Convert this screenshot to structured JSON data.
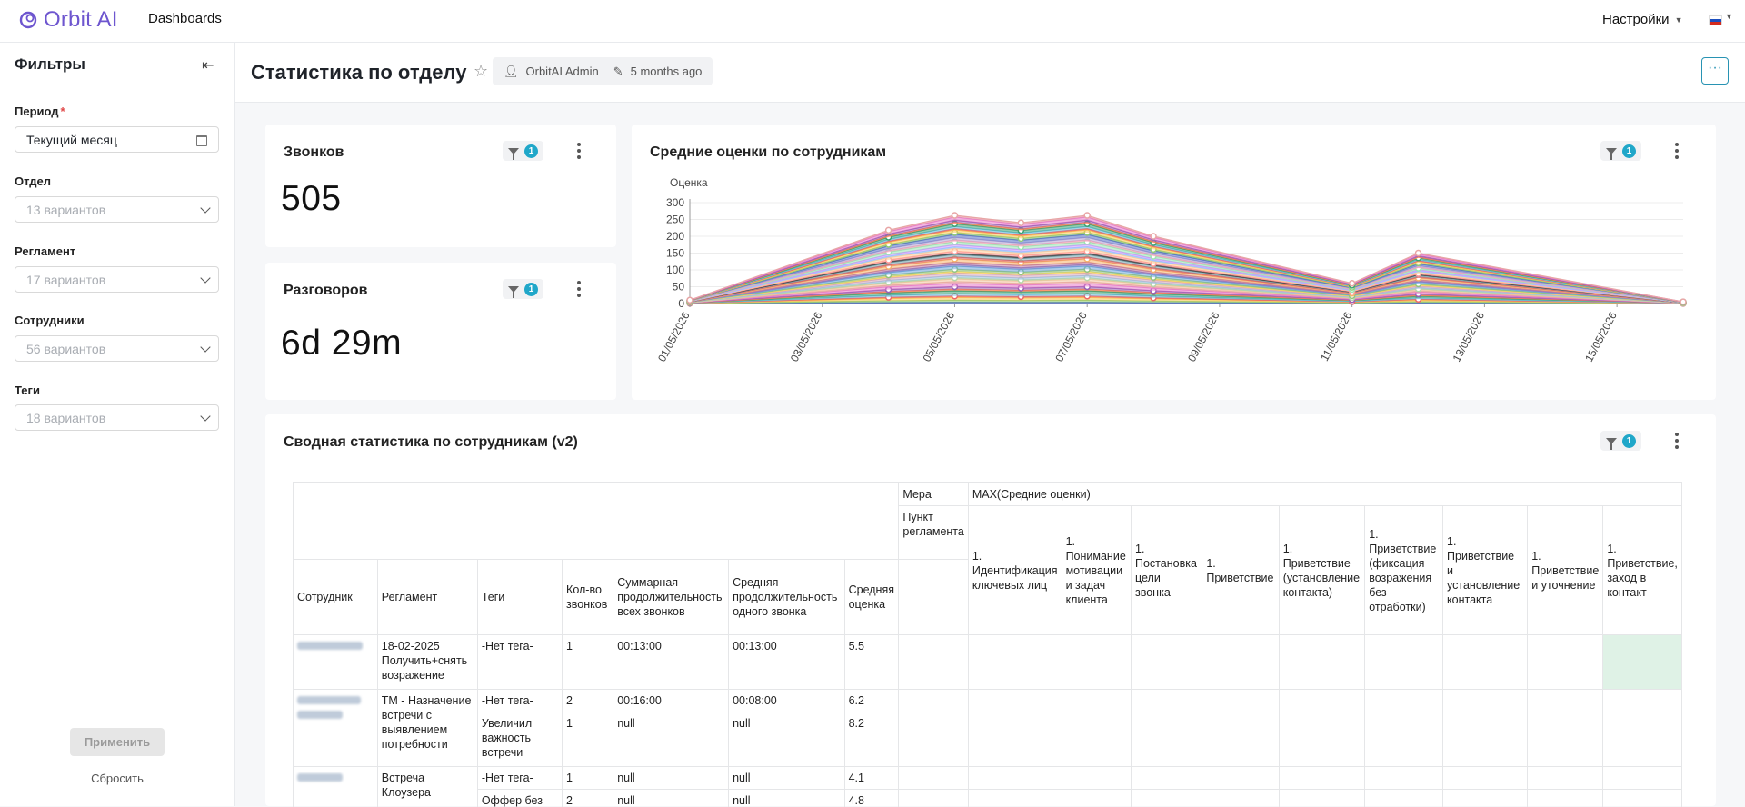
{
  "app": {
    "name": "Orbit AI",
    "nav_link": "Dashboards",
    "settings_label": "Настройки"
  },
  "sidebar": {
    "title": "Фильтры",
    "filters": [
      {
        "label": "Период",
        "required": true,
        "value": "Текущий месяц"
      },
      {
        "label": "Отдел",
        "placeholder": "13 вариантов"
      },
      {
        "label": "Регламент",
        "placeholder": "17 вариантов"
      },
      {
        "label": "Сотрудники",
        "placeholder": "56 вариантов"
      },
      {
        "label": "Теги",
        "placeholder": "18 вариантов"
      }
    ],
    "apply_label": "Применить",
    "reset_label": "Сбросить"
  },
  "header": {
    "title": "Статистика по отделу",
    "owner": "OrbitAI Admin",
    "modified": "5 months ago",
    "more": "···"
  },
  "cards": {
    "calls": {
      "title": "Звонков",
      "value": "505",
      "filter_count": "1"
    },
    "talks": {
      "title": "Разговоров",
      "value": "6d 29m",
      "filter_count": "1"
    },
    "chart": {
      "title": "Средние оценки по сотрудникам",
      "filter_count": "1"
    },
    "table": {
      "title": "Сводная статистика по сотрудникам (v2)",
      "filter_count": "1"
    }
  },
  "chart_data": {
    "type": "area",
    "stacked": true,
    "ylabel": "Оценка",
    "xlabel": "",
    "ylim": [
      0,
      300
    ],
    "yticks": [
      "0",
      "50",
      "100",
      "150",
      "200",
      "250",
      "300"
    ],
    "x_ticks": [
      "01/05/2026",
      "03/05/2026",
      "05/05/2026",
      "07/05/2026",
      "09/05/2026",
      "11/05/2026",
      "13/05/2026",
      "15/05/2026"
    ],
    "x": [
      "01/05/2026",
      "04/05/2026",
      "05/05/2026",
      "06/05/2026",
      "07/05/2026",
      "08/05/2026",
      "11/05/2026",
      "12/05/2026",
      "16/05/2026"
    ],
    "total": [
      10,
      218,
      262,
      240,
      262,
      200,
      60,
      150,
      5
    ],
    "series_count": 40,
    "legend": false
  },
  "table": {
    "measure_label": "Мера",
    "measure_value": "MAX(Средние оценки)",
    "point_label": "Пункт регламента",
    "columns": [
      "Сотрудник",
      "Регламент",
      "Теги",
      "Кол-во звонков",
      "Суммарная продолжительность всех звонков",
      "Средняя продолжительность одного звонка",
      "Средняя оценка"
    ],
    "point_columns": [
      "1. Идентификация ключевых лиц",
      "1. Понимание мотивации и задач клиента",
      "1. Постановка цели звонка",
      "1. Приветствие",
      "1. Приветствие (установление контакта)",
      "1. Приветствие (фиксация возражения без отработки)",
      "1. Приветствие и установление контакта",
      "1. Приветствие и уточнение",
      "1. Приветствие, заход в контакт"
    ],
    "rows": [
      {
        "reglament": "18-02-2025 Получить+снять возражение",
        "tag": "-Нет тега-",
        "calls": "1",
        "total": "00:13:00",
        "avg": "00:13:00",
        "score": "5.5"
      },
      {
        "reglament": "ТМ - Назначение встречи с выявлением потребности",
        "tag": "-Нет тега-",
        "calls": "2",
        "total": "00:16:00",
        "avg": "00:08:00",
        "score": "6.2"
      },
      {
        "reglament": "",
        "tag": "Увеличил важность встречи",
        "calls": "1",
        "total": "null",
        "avg": "null",
        "score": "8.2"
      },
      {
        "reglament": "Встреча Клоузера",
        "tag": "-Нет тега-",
        "calls": "1",
        "total": "null",
        "avg": "null",
        "score": "4.1"
      },
      {
        "reglament": "",
        "tag": "Оффер без",
        "calls": "2",
        "total": "null",
        "avg": "null",
        "score": "4.8"
      }
    ]
  }
}
